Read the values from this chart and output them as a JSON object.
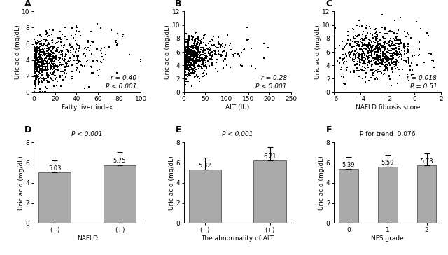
{
  "panel_A": {
    "label": "A",
    "xlabel": "Fatty liver index",
    "ylabel": "Uric acid (mg/dL)",
    "xlim": [
      0,
      100
    ],
    "ylim": [
      0,
      10
    ],
    "xticks": [
      0,
      20,
      40,
      60,
      80,
      100
    ],
    "yticks": [
      0,
      2,
      4,
      6,
      8,
      10
    ],
    "r_text": "r = 0.40",
    "p_text": "P < 0.001",
    "n_points": 700,
    "seed": 42
  },
  "panel_B": {
    "label": "B",
    "xlabel": "ALT (IU)",
    "ylabel": "Uric acid (mg/dL)",
    "xlim": [
      0,
      250
    ],
    "ylim": [
      0,
      12
    ],
    "xticks": [
      0,
      50,
      100,
      150,
      200,
      250
    ],
    "yticks": [
      0,
      2,
      4,
      6,
      8,
      10,
      12
    ],
    "r_text": "r = 0.28",
    "p_text": "P < 0.001",
    "n_points": 700,
    "seed": 43
  },
  "panel_C": {
    "label": "C",
    "xlabel": "NAFLD fibrosis score",
    "ylabel": "Uric acid (mg/dL)",
    "xlim": [
      -6,
      2
    ],
    "ylim": [
      0,
      12
    ],
    "xticks": [
      -6,
      -4,
      -2,
      0,
      2
    ],
    "yticks": [
      0,
      2,
      4,
      6,
      8,
      10,
      12
    ],
    "r_text": "r = 0.018",
    "p_text": "P = 0.51",
    "n_points": 700,
    "seed": 44
  },
  "panel_D": {
    "label": "D",
    "xlabel": "NAFLD",
    "ylabel": "Uric acid (mg/dL)",
    "categories": [
      "−",
      "+"
    ],
    "cat_labels": [
      "(−)",
      "(+)"
    ],
    "values": [
      5.03,
      5.75
    ],
    "errors": [
      1.2,
      1.3
    ],
    "p_text": "P < 0.001",
    "ylim": [
      0,
      8
    ],
    "yticks": [
      0,
      2,
      4,
      6,
      8
    ],
    "bar_color": "#aaaaaa"
  },
  "panel_E": {
    "label": "E",
    "xlabel": "The abnormality of ALT",
    "ylabel": "Uric acid (mg/dL)",
    "categories": [
      "−",
      "+"
    ],
    "cat_labels": [
      "(−)",
      "(+)"
    ],
    "values": [
      5.32,
      6.21
    ],
    "errors": [
      1.2,
      1.3
    ],
    "p_text": "P < 0.001",
    "ylim": [
      0,
      8
    ],
    "yticks": [
      0,
      2,
      4,
      6,
      8
    ],
    "bar_color": "#aaaaaa"
  },
  "panel_F": {
    "label": "F",
    "xlabel": "NFS grade",
    "ylabel": "Uric acid (mg/dL)",
    "categories": [
      "0",
      "1",
      "2"
    ],
    "cat_labels": [
      "0",
      "1",
      "2"
    ],
    "values": [
      5.39,
      5.59,
      5.73
    ],
    "errors": [
      1.2,
      1.2,
      1.2
    ],
    "p_text": "P for trend  0.076",
    "ylim": [
      0,
      8
    ],
    "yticks": [
      0,
      2,
      4,
      6,
      8
    ],
    "bar_color": "#aaaaaa"
  },
  "background_color": "#ffffff",
  "scatter_color": "#000000",
  "marker_size": 2.5,
  "font_size_label": 6.5,
  "font_size_tick": 6.5,
  "font_size_panel": 9,
  "font_size_stat": 6.5,
  "font_size_bar_val": 6.0
}
